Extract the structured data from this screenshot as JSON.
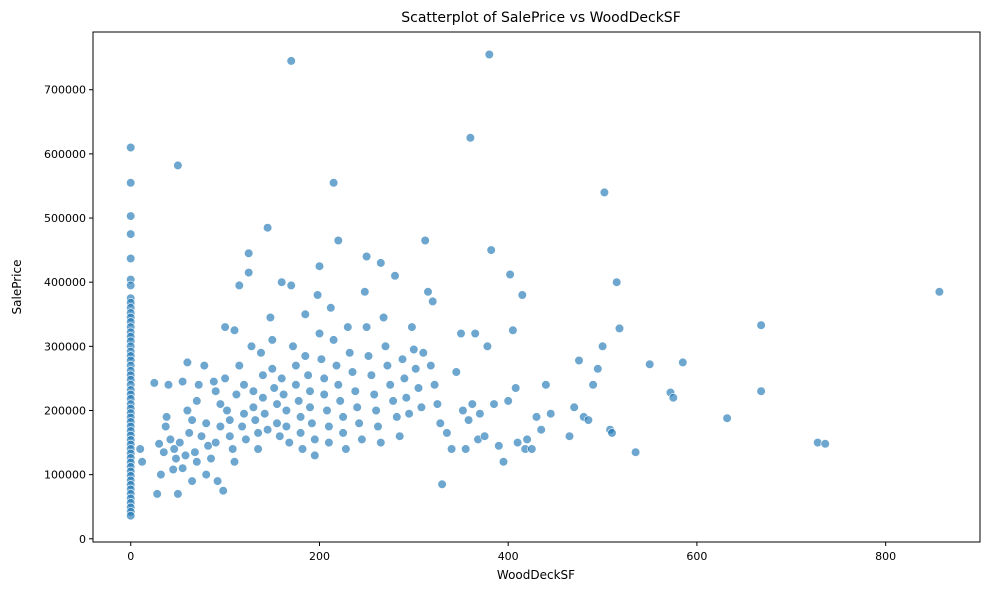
{
  "chart_data": {
    "type": "scatter",
    "title": "Scatterplot of SalePrice vs WoodDeckSF",
    "xlabel": "WoodDeckSF",
    "ylabel": "SalePrice",
    "xlim": [
      -40,
      900
    ],
    "ylim": [
      -5000,
      790000
    ],
    "xticks": [
      0,
      200,
      400,
      600,
      800
    ],
    "yticks": [
      0,
      100000,
      200000,
      300000,
      400000,
      500000,
      600000,
      700000
    ],
    "grid": false,
    "color": "#1f77b4",
    "points": [
      [
        0,
        610000
      ],
      [
        0,
        555000
      ],
      [
        0,
        503000
      ],
      [
        0,
        475000
      ],
      [
        0,
        437000
      ],
      [
        0,
        404000
      ],
      [
        0,
        395000
      ],
      [
        0,
        375000
      ],
      [
        0,
        368000
      ],
      [
        0,
        360000
      ],
      [
        0,
        352000
      ],
      [
        0,
        345000
      ],
      [
        0,
        338000
      ],
      [
        0,
        330000
      ],
      [
        0,
        322000
      ],
      [
        0,
        315000
      ],
      [
        0,
        308000
      ],
      [
        0,
        300000
      ],
      [
        0,
        292000
      ],
      [
        0,
        285000
      ],
      [
        0,
        278000
      ],
      [
        0,
        270000
      ],
      [
        0,
        262000
      ],
      [
        0,
        255000
      ],
      [
        0,
        248000
      ],
      [
        0,
        240000
      ],
      [
        0,
        232000
      ],
      [
        0,
        225000
      ],
      [
        0,
        218000
      ],
      [
        0,
        210000
      ],
      [
        0,
        203000
      ],
      [
        0,
        196000
      ],
      [
        0,
        189000
      ],
      [
        0,
        182000
      ],
      [
        0,
        175000
      ],
      [
        0,
        168000
      ],
      [
        0,
        161000
      ],
      [
        0,
        154000
      ],
      [
        0,
        147000
      ],
      [
        0,
        140000
      ],
      [
        0,
        133000
      ],
      [
        0,
        126000
      ],
      [
        0,
        119000
      ],
      [
        0,
        112000
      ],
      [
        0,
        105000
      ],
      [
        0,
        98000
      ],
      [
        0,
        91000
      ],
      [
        0,
        84000
      ],
      [
        0,
        77000
      ],
      [
        0,
        70000
      ],
      [
        0,
        63000
      ],
      [
        0,
        56000
      ],
      [
        0,
        49000
      ],
      [
        0,
        42000
      ],
      [
        0,
        36000
      ],
      [
        10,
        140000
      ],
      [
        12,
        120000
      ],
      [
        25,
        243000
      ],
      [
        28,
        70000
      ],
      [
        30,
        148000
      ],
      [
        32,
        100000
      ],
      [
        35,
        135000
      ],
      [
        37,
        175000
      ],
      [
        38,
        190000
      ],
      [
        40,
        240000
      ],
      [
        42,
        155000
      ],
      [
        45,
        108000
      ],
      [
        46,
        140000
      ],
      [
        48,
        125000
      ],
      [
        50,
        70000
      ],
      [
        50,
        582000
      ],
      [
        52,
        150000
      ],
      [
        55,
        245000
      ],
      [
        55,
        110000
      ],
      [
        58,
        130000
      ],
      [
        60,
        200000
      ],
      [
        60,
        275000
      ],
      [
        62,
        165000
      ],
      [
        65,
        185000
      ],
      [
        65,
        90000
      ],
      [
        68,
        135000
      ],
      [
        70,
        215000
      ],
      [
        70,
        120000
      ],
      [
        72,
        240000
      ],
      [
        75,
        160000
      ],
      [
        78,
        270000
      ],
      [
        80,
        180000
      ],
      [
        80,
        100000
      ],
      [
        82,
        145000
      ],
      [
        85,
        125000
      ],
      [
        88,
        245000
      ],
      [
        90,
        230000
      ],
      [
        90,
        150000
      ],
      [
        92,
        90000
      ],
      [
        95,
        210000
      ],
      [
        95,
        175000
      ],
      [
        98,
        75000
      ],
      [
        100,
        330000
      ],
      [
        100,
        250000
      ],
      [
        102,
        200000
      ],
      [
        105,
        185000
      ],
      [
        105,
        160000
      ],
      [
        108,
        140000
      ],
      [
        110,
        325000
      ],
      [
        110,
        120000
      ],
      [
        112,
        225000
      ],
      [
        115,
        270000
      ],
      [
        115,
        395000
      ],
      [
        118,
        175000
      ],
      [
        120,
        240000
      ],
      [
        120,
        195000
      ],
      [
        122,
        155000
      ],
      [
        125,
        415000
      ],
      [
        125,
        445000
      ],
      [
        128,
        300000
      ],
      [
        130,
        230000
      ],
      [
        130,
        205000
      ],
      [
        132,
        185000
      ],
      [
        135,
        165000
      ],
      [
        135,
        140000
      ],
      [
        138,
        290000
      ],
      [
        140,
        255000
      ],
      [
        140,
        220000
      ],
      [
        142,
        195000
      ],
      [
        145,
        170000
      ],
      [
        145,
        485000
      ],
      [
        148,
        345000
      ],
      [
        150,
        310000
      ],
      [
        150,
        265000
      ],
      [
        152,
        235000
      ],
      [
        155,
        210000
      ],
      [
        155,
        180000
      ],
      [
        158,
        160000
      ],
      [
        160,
        400000
      ],
      [
        160,
        250000
      ],
      [
        162,
        225000
      ],
      [
        165,
        200000
      ],
      [
        165,
        175000
      ],
      [
        168,
        150000
      ],
      [
        170,
        395000
      ],
      [
        170,
        745000
      ],
      [
        172,
        300000
      ],
      [
        175,
        270000
      ],
      [
        175,
        240000
      ],
      [
        178,
        215000
      ],
      [
        180,
        190000
      ],
      [
        180,
        165000
      ],
      [
        182,
        140000
      ],
      [
        185,
        350000
      ],
      [
        185,
        285000
      ],
      [
        188,
        255000
      ],
      [
        190,
        230000
      ],
      [
        190,
        205000
      ],
      [
        192,
        180000
      ],
      [
        195,
        155000
      ],
      [
        195,
        130000
      ],
      [
        198,
        380000
      ],
      [
        200,
        425000
      ],
      [
        200,
        320000
      ],
      [
        202,
        280000
      ],
      [
        205,
        250000
      ],
      [
        205,
        225000
      ],
      [
        208,
        200000
      ],
      [
        210,
        175000
      ],
      [
        210,
        150000
      ],
      [
        212,
        360000
      ],
      [
        215,
        555000
      ],
      [
        215,
        310000
      ],
      [
        218,
        270000
      ],
      [
        220,
        465000
      ],
      [
        220,
        240000
      ],
      [
        222,
        215000
      ],
      [
        225,
        190000
      ],
      [
        225,
        165000
      ],
      [
        228,
        140000
      ],
      [
        230,
        330000
      ],
      [
        232,
        290000
      ],
      [
        235,
        260000
      ],
      [
        238,
        230000
      ],
      [
        240,
        205000
      ],
      [
        242,
        180000
      ],
      [
        245,
        155000
      ],
      [
        248,
        385000
      ],
      [
        250,
        440000
      ],
      [
        250,
        330000
      ],
      [
        252,
        285000
      ],
      [
        255,
        255000
      ],
      [
        258,
        225000
      ],
      [
        260,
        200000
      ],
      [
        262,
        175000
      ],
      [
        265,
        430000
      ],
      [
        265,
        150000
      ],
      [
        268,
        345000
      ],
      [
        270,
        300000
      ],
      [
        272,
        270000
      ],
      [
        275,
        240000
      ],
      [
        278,
        215000
      ],
      [
        280,
        410000
      ],
      [
        282,
        190000
      ],
      [
        285,
        160000
      ],
      [
        288,
        280000
      ],
      [
        290,
        250000
      ],
      [
        292,
        220000
      ],
      [
        295,
        195000
      ],
      [
        298,
        330000
      ],
      [
        300,
        295000
      ],
      [
        302,
        265000
      ],
      [
        305,
        235000
      ],
      [
        308,
        205000
      ],
      [
        310,
        290000
      ],
      [
        312,
        465000
      ],
      [
        315,
        385000
      ],
      [
        318,
        270000
      ],
      [
        320,
        370000
      ],
      [
        322,
        240000
      ],
      [
        325,
        210000
      ],
      [
        328,
        180000
      ],
      [
        330,
        85000
      ],
      [
        335,
        165000
      ],
      [
        340,
        140000
      ],
      [
        345,
        260000
      ],
      [
        350,
        320000
      ],
      [
        352,
        200000
      ],
      [
        355,
        140000
      ],
      [
        358,
        185000
      ],
      [
        360,
        625000
      ],
      [
        362,
        210000
      ],
      [
        365,
        320000
      ],
      [
        368,
        155000
      ],
      [
        370,
        195000
      ],
      [
        375,
        160000
      ],
      [
        378,
        300000
      ],
      [
        380,
        755000
      ],
      [
        382,
        450000
      ],
      [
        385,
        210000
      ],
      [
        390,
        145000
      ],
      [
        395,
        120000
      ],
      [
        400,
        215000
      ],
      [
        402,
        412000
      ],
      [
        405,
        325000
      ],
      [
        408,
        235000
      ],
      [
        410,
        150000
      ],
      [
        415,
        380000
      ],
      [
        418,
        140000
      ],
      [
        420,
        155000
      ],
      [
        425,
        140000
      ],
      [
        430,
        190000
      ],
      [
        435,
        170000
      ],
      [
        440,
        240000
      ],
      [
        445,
        195000
      ],
      [
        465,
        160000
      ],
      [
        470,
        205000
      ],
      [
        475,
        278000
      ],
      [
        480,
        190000
      ],
      [
        485,
        185000
      ],
      [
        490,
        240000
      ],
      [
        495,
        265000
      ],
      [
        500,
        300000
      ],
      [
        502,
        540000
      ],
      [
        508,
        170000
      ],
      [
        510,
        165000
      ],
      [
        515,
        400000
      ],
      [
        518,
        328000
      ],
      [
        535,
        135000
      ],
      [
        550,
        272000
      ],
      [
        572,
        228000
      ],
      [
        575,
        220000
      ],
      [
        585,
        275000
      ],
      [
        632,
        188000
      ],
      [
        668,
        333000
      ],
      [
        668,
        230000
      ],
      [
        728,
        150000
      ],
      [
        736,
        148000
      ],
      [
        857,
        385000
      ]
    ]
  }
}
